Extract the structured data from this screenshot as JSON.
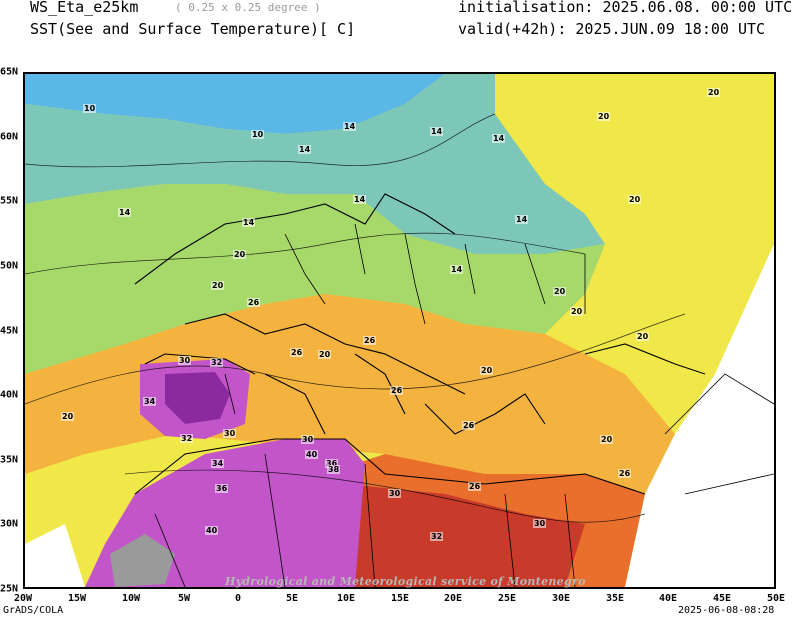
{
  "header": {
    "model": "WS_Eta_e25km",
    "resolution": "( 0.25 x 0.25 degree )",
    "variable": "SST(See and Surface Temperature)[ C]",
    "initialisation": "initialisation: 2025.06.08. 00:00 UTC",
    "valid": "valid(+42h): 2025.JUN.09 18:00 UTC"
  },
  "map": {
    "x_ticks": [
      "20W",
      "15W",
      "10W",
      "5W",
      "0",
      "5E",
      "10E",
      "15E",
      "20E",
      "25E",
      "30E",
      "35E",
      "40E",
      "45E",
      "50E"
    ],
    "y_ticks": [
      "65N",
      "60N",
      "55N",
      "50N",
      "45N",
      "40N",
      "35N",
      "30N",
      "25N"
    ],
    "contour_labels": [
      "10",
      "10",
      "14",
      "14",
      "14",
      "14",
      "14",
      "14",
      "14",
      "14",
      "14",
      "20",
      "20",
      "20",
      "20",
      "20",
      "20",
      "20",
      "20",
      "20",
      "20",
      "20",
      "20",
      "26",
      "26",
      "26",
      "26",
      "26",
      "26",
      "26",
      "30",
      "30",
      "30",
      "30",
      "30",
      "32",
      "32",
      "32",
      "34",
      "34",
      "36",
      "36",
      "38",
      "40",
      "40"
    ],
    "colors": {
      "cold": "#5bb7e6",
      "cool": "#7cc7b8",
      "mild": "#a7d86a",
      "warm": "#f0e848",
      "hot": "#f4b23e",
      "very_hot": "#e8702c",
      "extreme": "#c83a2a",
      "desert": "#c255c8",
      "desert_dark": "#8a2a9e",
      "no_data": "#ffffff",
      "grey_land": "#9a9a9a"
    }
  },
  "footer": {
    "software": "GrADS/COLA",
    "timestamp": "2025-06-08-08:28",
    "watermark": "Hydrological and Meteorological service of Montenegro"
  }
}
